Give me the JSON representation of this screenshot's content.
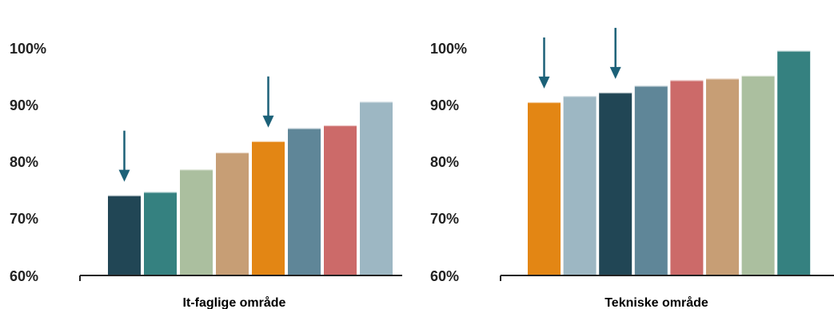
{
  "chart_data": [
    {
      "type": "bar",
      "xlabel": "It-faglige område",
      "ylim": [
        60,
        100
      ],
      "yticks": [
        "100%",
        "90%",
        "80%",
        "70%",
        "60%"
      ],
      "yticks_values": [
        100,
        90,
        80,
        70,
        60
      ],
      "values": [
        73.9,
        74.5,
        78.5,
        81.5,
        83.5,
        85.8,
        86.3,
        90.5
      ],
      "colors": [
        "#214655",
        "#358180",
        "#abbf9f",
        "#c79e75",
        "#e38614",
        "#5f8698",
        "#cc6a69",
        "#9db7c3"
      ],
      "arrows_on_bars": [
        0,
        4
      ]
    },
    {
      "type": "bar",
      "xlabel": "Tekniske område",
      "ylim": [
        60,
        100
      ],
      "yticks": [
        "100%",
        "90%",
        "80%",
        "70%",
        "60%"
      ],
      "yticks_values": [
        100,
        90,
        80,
        70,
        60
      ],
      "values": [
        90.4,
        91.5,
        92.1,
        93.3,
        94.3,
        94.6,
        95.1,
        99.5
      ],
      "colors": [
        "#e38614",
        "#9db7c3",
        "#214655",
        "#5f8698",
        "#cc6a69",
        "#c79e75",
        "#abbf9f",
        "#358180"
      ],
      "arrows_on_bars": [
        0,
        2
      ]
    }
  ],
  "colors": {
    "arrow": "#1c6178",
    "axis": "#222222"
  }
}
